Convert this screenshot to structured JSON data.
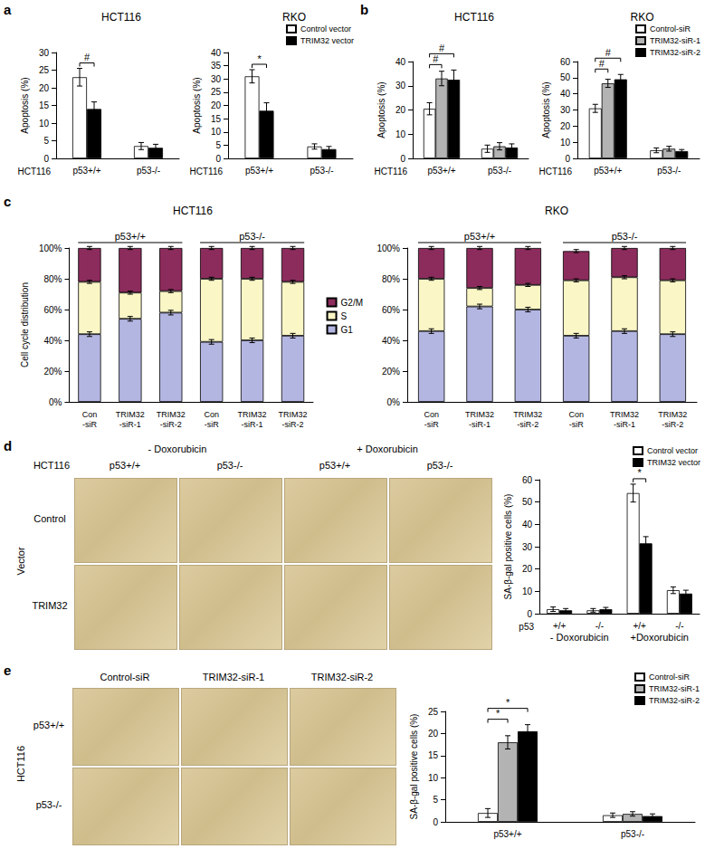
{
  "panel_labels": [
    "a",
    "b",
    "c",
    "d",
    "e"
  ],
  "chart_data": [
    {
      "type": "bar",
      "title": "HCT116",
      "xlabel": "HCT116",
      "ylabel": "Apoptosis (%)",
      "categories": [
        "p53+/+",
        "p53-/-"
      ],
      "ylim": [
        0,
        30
      ],
      "yticks": [
        0,
        5,
        10,
        15,
        20,
        25,
        30
      ],
      "grid": false,
      "series": [
        {
          "color": "#ffffff",
          "values": [
            23,
            3.5
          ],
          "errors": [
            2.5,
            1
          ]
        },
        {
          "color": "#000000",
          "values": [
            14,
            3
          ],
          "errors": [
            2,
            1
          ]
        }
      ],
      "annotations": [
        {
          "category": 0,
          "from": 0,
          "to": 1,
          "label": "#"
        }
      ]
    },
    {
      "type": "bar",
      "title": "RKO",
      "xlabel": "HCT116",
      "ylabel": "Apoptosis (%)",
      "categories": [
        "p53+/+",
        "p53-/-"
      ],
      "ylim": [
        0,
        40
      ],
      "yticks": [
        0,
        5,
        10,
        15,
        20,
        25,
        30,
        35,
        40
      ],
      "grid": false,
      "legend": "upper right",
      "series": [
        {
          "name": "Control vector",
          "color": "#ffffff",
          "values": [
            31,
            4.5
          ],
          "errors": [
            2.5,
            1
          ]
        },
        {
          "name": "TRIM32 vector",
          "color": "#000000",
          "values": [
            18,
            3.5
          ],
          "errors": [
            3,
            1
          ]
        }
      ],
      "annotations": [
        {
          "category": 0,
          "from": 0,
          "to": 1,
          "label": "*"
        }
      ]
    },
    {
      "type": "bar",
      "title": "HCT116",
      "xlabel": "HCT116",
      "ylabel": "Apoptosis (%)",
      "categories": [
        "p53+/+",
        "p53-/-"
      ],
      "ylim": [
        0,
        40
      ],
      "yticks": [
        0,
        10,
        20,
        30,
        40
      ],
      "grid": false,
      "series": [
        {
          "color": "#ffffff",
          "values": [
            20.5,
            4
          ],
          "errors": [
            2.5,
            1.5
          ]
        },
        {
          "color": "#b3b3b3",
          "values": [
            33,
            5
          ],
          "errors": [
            3,
            1.5
          ]
        },
        {
          "color": "#000000",
          "values": [
            32.5,
            4.5
          ],
          "errors": [
            4,
            1.5
          ]
        }
      ],
      "annotations": [
        {
          "category": 0,
          "from": 0,
          "to": 1,
          "label": "#"
        },
        {
          "category": 0,
          "from": 0,
          "to": 2,
          "label": "#"
        }
      ]
    },
    {
      "type": "bar",
      "title": "RKO",
      "xlabel": "HCT116",
      "ylabel": "Apoptosis (%)",
      "categories": [
        "p53+/+",
        "p53-/-"
      ],
      "ylim": [
        0,
        60
      ],
      "yticks": [
        0,
        10,
        20,
        30,
        40,
        50,
        60
      ],
      "grid": false,
      "legend": "upper right",
      "series": [
        {
          "name": "Control-siR",
          "color": "#ffffff",
          "values": [
            31,
            5
          ],
          "errors": [
            2.5,
            1.5
          ]
        },
        {
          "name": "TRIM32-siR-1",
          "color": "#b3b3b3",
          "values": [
            46.5,
            6
          ],
          "errors": [
            2.5,
            1.5
          ]
        },
        {
          "name": "TRIM32-siR-2",
          "color": "#000000",
          "values": [
            49,
            4.5
          ],
          "errors": [
            3,
            1
          ]
        }
      ],
      "annotations": [
        {
          "category": 0,
          "from": 0,
          "to": 1,
          "label": "#"
        },
        {
          "category": 0,
          "from": 0,
          "to": 2,
          "label": "#"
        }
      ]
    },
    {
      "type": "bar",
      "stacked": true,
      "title": "HCT116",
      "ylabel": "Cell cycle distribution",
      "categories": [
        "Con-siR",
        "TRIM32-siR-1",
        "TRIM32-siR-2",
        "Con-siR",
        "TRIM32-siR-1",
        "TRIM32-siR-2"
      ],
      "groups": [
        {
          "label": "p53+/+",
          "from": 0,
          "to": 2
        },
        {
          "label": "p53-/-",
          "from": 3,
          "to": 5
        }
      ],
      "ylim": [
        0,
        100
      ],
      "yticks": [
        {
          "value": 0,
          "label": "0%"
        },
        {
          "value": 20,
          "label": "20%"
        },
        {
          "value": 40,
          "label": "40%"
        },
        {
          "value": 60,
          "label": "60%"
        },
        {
          "value": 80,
          "label": "80%"
        },
        {
          "value": 100,
          "label": "100%"
        }
      ],
      "grid": false,
      "legend": "right",
      "series": [
        {
          "name": "G1",
          "color": "#b4b6e2",
          "values": [
            44,
            54,
            58,
            39,
            40,
            43
          ],
          "errors": [
            1.5,
            1.5,
            1.5,
            1.5,
            1.5,
            1.5
          ]
        },
        {
          "name": "S",
          "color": "#faf6c6",
          "values": [
            34,
            17,
            14,
            41,
            40,
            35
          ],
          "errors": [
            1,
            1,
            1,
            1,
            1,
            1
          ]
        },
        {
          "name": "G2/M",
          "color": "#8c2c5c",
          "values": [
            22,
            29,
            28,
            20,
            20,
            22
          ],
          "errors": [
            1,
            1,
            1,
            1,
            1,
            1
          ]
        }
      ]
    },
    {
      "type": "bar",
      "stacked": true,
      "title": "RKO",
      "categories": [
        "Con-siR",
        "TRIM32-siR-1",
        "TRIM32-siR-2",
        "Con-siR",
        "TRIM32-siR-1",
        "TRIM32-siR-2"
      ],
      "groups": [
        {
          "label": "p53+/+",
          "from": 0,
          "to": 2
        },
        {
          "label": "p53-/-",
          "from": 3,
          "to": 5
        }
      ],
      "ylim": [
        0,
        100
      ],
      "yticks": [
        {
          "value": 0,
          "label": "0%"
        },
        {
          "value": 20,
          "label": "20%"
        },
        {
          "value": 40,
          "label": "40%"
        },
        {
          "value": 60,
          "label": "60%"
        },
        {
          "value": 80,
          "label": "80%"
        },
        {
          "value": 100,
          "label": "100%"
        }
      ],
      "grid": false,
      "series": [
        {
          "color": "#b4b6e2",
          "values": [
            46,
            62,
            60,
            43,
            46,
            44
          ],
          "errors": [
            1.5,
            1.5,
            1.5,
            1.5,
            1.5,
            1.5
          ]
        },
        {
          "color": "#faf6c6",
          "values": [
            34,
            12,
            16,
            36,
            35,
            35
          ],
          "errors": [
            1,
            1,
            1,
            1,
            1,
            1
          ]
        },
        {
          "color": "#8c2c5c",
          "values": [
            20,
            26,
            24,
            19,
            19,
            21
          ],
          "errors": [
            1,
            1,
            1,
            1,
            1,
            1
          ]
        }
      ]
    },
    {
      "type": "bar",
      "xlabel": "p53",
      "ylabel": "SA-β-gal positive cells (%)",
      "categories": [
        "+/+",
        "-/-",
        "+/+",
        "-/-"
      ],
      "groups": [
        {
          "label": "- Doxorubicin",
          "from": 0,
          "to": 1
        },
        {
          "label": "+Doxorubicin",
          "from": 2,
          "to": 3
        }
      ],
      "ylim": [
        0,
        60
      ],
      "yticks": [
        0,
        10,
        20,
        30,
        40,
        50,
        60
      ],
      "grid": false,
      "legend": "upper right",
      "series": [
        {
          "name": "Control vector",
          "color": "#ffffff",
          "values": [
            2,
            1.5,
            54,
            10.5
          ],
          "errors": [
            1,
            0.8,
            4,
            1.5
          ]
        },
        {
          "name": "TRIM32 vector",
          "color": "#000000",
          "values": [
            1.5,
            2,
            31.5,
            9
          ],
          "errors": [
            0.8,
            0.8,
            3,
            1.5
          ]
        }
      ],
      "annotations": [
        {
          "category": 2,
          "from": 0,
          "to": 1,
          "label": "*"
        }
      ]
    },
    {
      "type": "bar",
      "ylabel": "SA-β-gal positive cells (%)",
      "categories": [
        "p53+/+",
        "p53-/-"
      ],
      "ylim": [
        0,
        25
      ],
      "yticks": [
        0,
        5,
        10,
        15,
        20,
        25
      ],
      "grid": false,
      "legend": "upper right",
      "series": [
        {
          "name": "Control-siR",
          "color": "#ffffff",
          "values": [
            2,
            1.5
          ],
          "errors": [
            1,
            0.5
          ]
        },
        {
          "name": "TRIM32-siR-1",
          "color": "#b3b3b3",
          "values": [
            18,
            1.8
          ],
          "errors": [
            1.5,
            0.5
          ]
        },
        {
          "name": "TRIM32-siR-2",
          "color": "#000000",
          "values": [
            20.5,
            1.3
          ],
          "errors": [
            1.5,
            0.5
          ]
        }
      ],
      "annotations": [
        {
          "category": 0,
          "from": 0,
          "to": 1,
          "label": "*"
        },
        {
          "category": 0,
          "from": 0,
          "to": 2,
          "label": "*"
        }
      ]
    }
  ],
  "image_panels": {
    "d": {
      "column_groups": [
        "- Doxorubicin",
        "+ Doxorubicin"
      ],
      "row_header": "HCT116",
      "columns": [
        "p53+/+",
        "p53-/-",
        "p53+/+",
        "p53-/-"
      ],
      "side_label": "Vector",
      "rows": [
        "Control",
        "TRIM32"
      ]
    },
    "e": {
      "columns": [
        "Control-siR",
        "TRIM32-siR-1",
        "TRIM32-siR-2"
      ],
      "side_label": "HCT116",
      "rows": [
        "p53+/+",
        "p53-/-"
      ]
    }
  }
}
